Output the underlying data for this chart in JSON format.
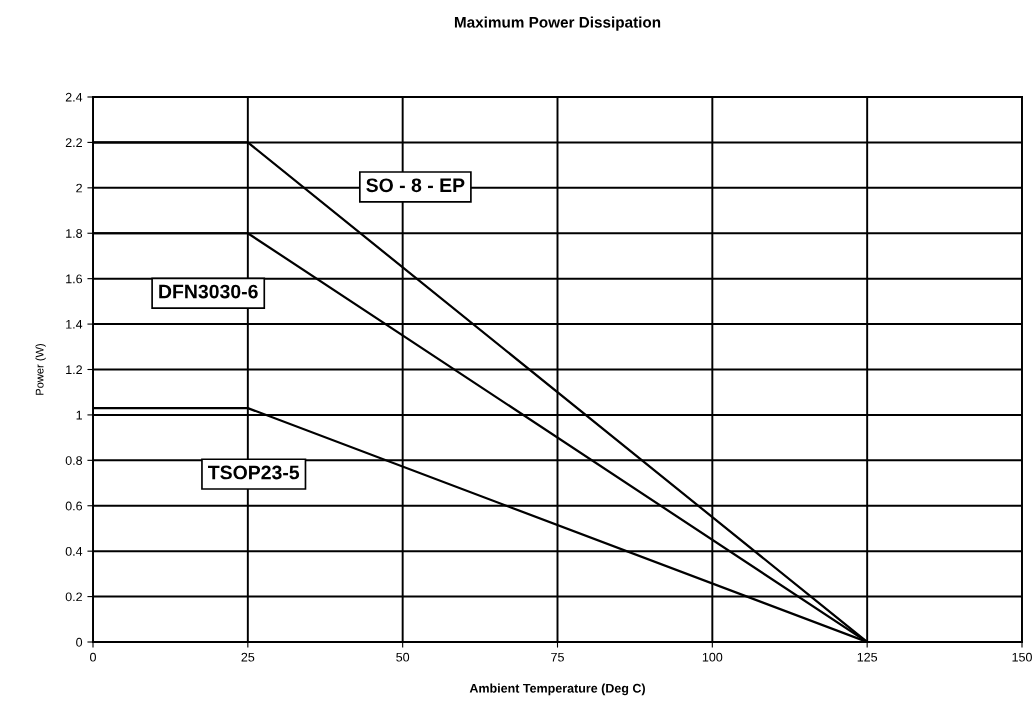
{
  "chart_data": {
    "type": "line",
    "title": "Maximum Power Dissipation",
    "xlabel": "Ambient Temperature (Deg C)",
    "ylabel": "Power (W)",
    "series": [
      {
        "name": "SO - 8 - EP",
        "color": "#000000",
        "x": [
          0,
          25,
          125
        ],
        "values": [
          2.2,
          2.2,
          0
        ]
      },
      {
        "name": "DFN3030-6",
        "color": "#000000",
        "x": [
          0,
          25,
          125
        ],
        "values": [
          1.8,
          1.8,
          0
        ]
      },
      {
        "name": "TSOP23-5",
        "color": "#000000",
        "x": [
          0,
          25,
          125
        ],
        "values": [
          1.03,
          1.03,
          0
        ]
      }
    ],
    "xlim": [
      0,
      150
    ],
    "xticks": [
      0,
      25,
      50,
      75,
      100,
      125,
      150
    ],
    "ylim": [
      0,
      2.4
    ],
    "yticks": [
      0,
      0.2,
      0.4,
      0.6,
      0.8,
      1,
      1.2,
      1.4,
      1.6,
      1.8,
      2,
      2.2,
      2.4
    ],
    "grid": true,
    "legend": false,
    "marker": "none",
    "line_style": "solid"
  }
}
